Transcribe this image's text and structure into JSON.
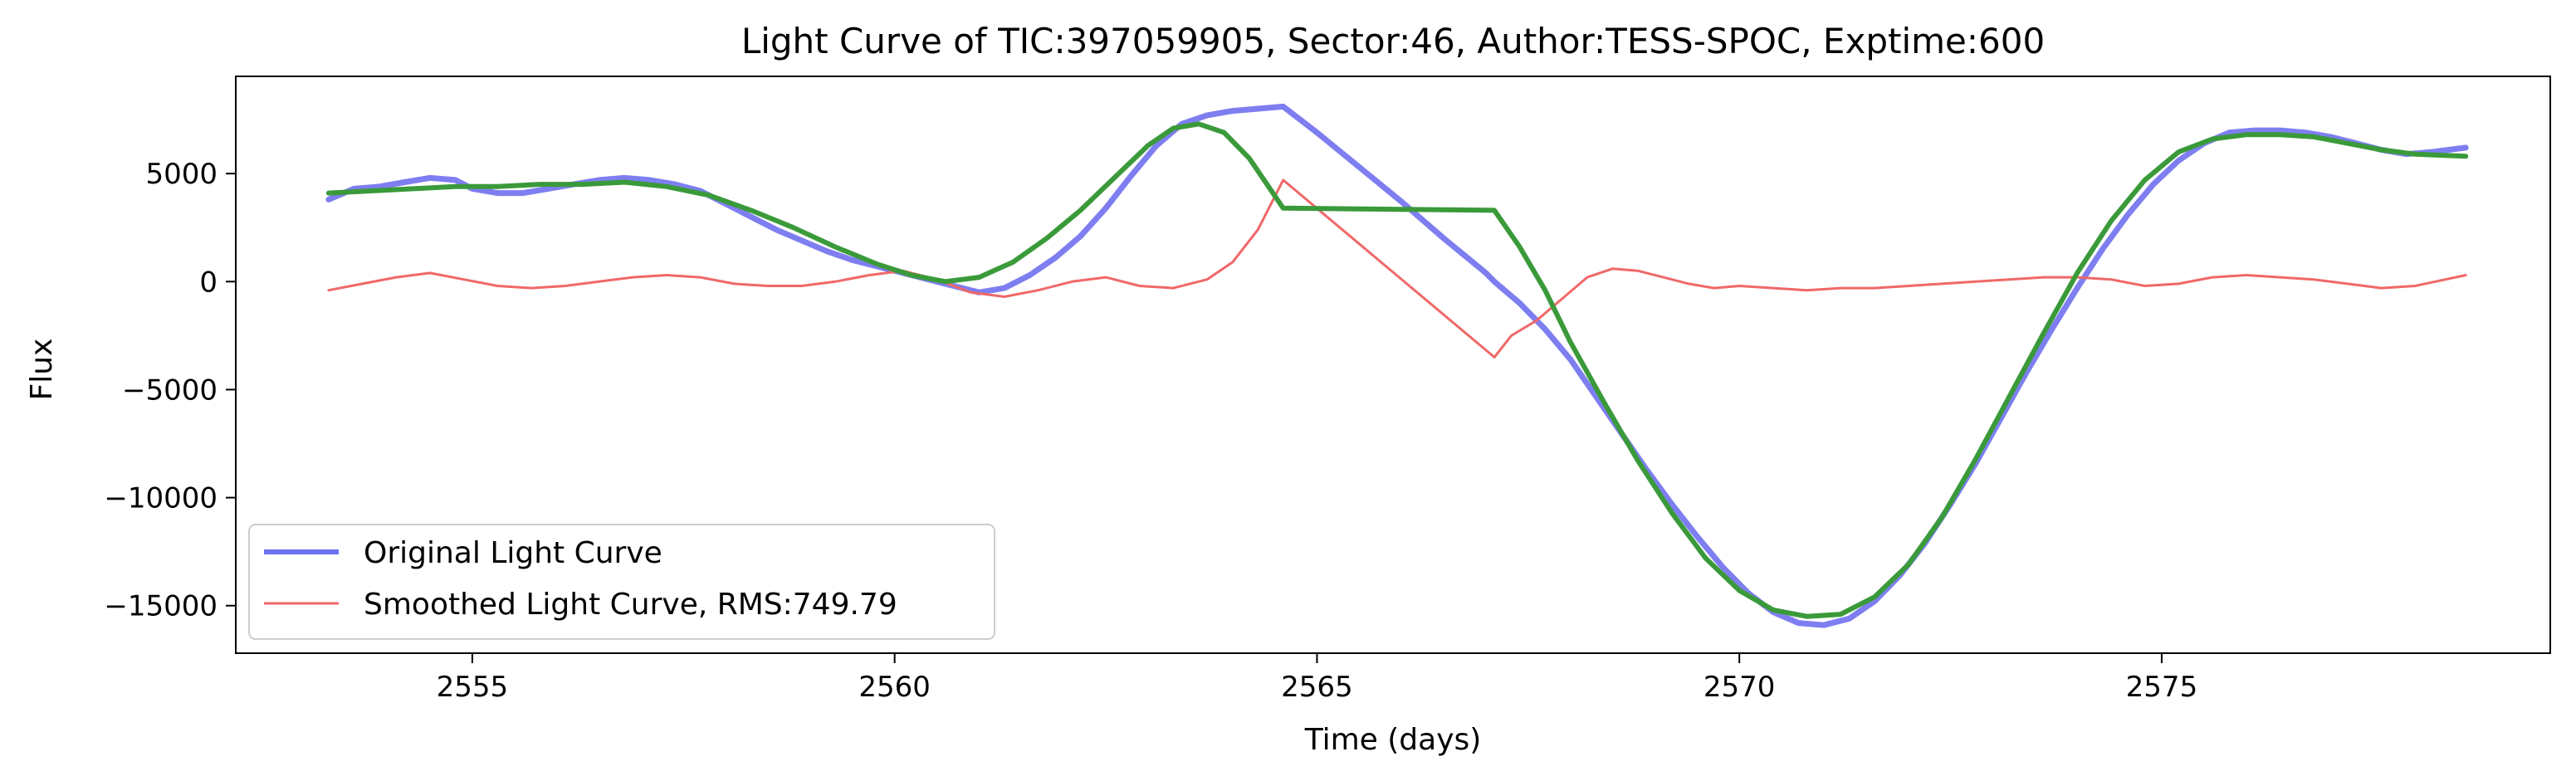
{
  "chart_data": {
    "type": "line",
    "title": "Light Curve of TIC:397059905, Sector:46, Author:TESS-SPOC, Exptime:600",
    "xlabel": "Time (days)",
    "ylabel": "Flux",
    "xlim": [
      2552.2,
      2579.6
    ],
    "ylim": [
      -17200,
      9500
    ],
    "xticks": [
      2555,
      2560,
      2565,
      2570,
      2575
    ],
    "xtick_labels": [
      "2555",
      "2560",
      "2565",
      "2570",
      "2575"
    ],
    "yticks": [
      5000,
      0,
      -5000,
      -10000,
      -15000
    ],
    "ytick_labels": [
      "5000",
      "0",
      "−5000",
      "−10000",
      "−15000"
    ],
    "grid": false,
    "legend_position": "lower-left",
    "legend": [
      "Original Light Curve",
      "Smoothed Light Curve, RMS:749.79"
    ],
    "series": [
      {
        "name": "Original Light Curve",
        "color": "#7070f0",
        "x": [
          2553.3,
          2553.6,
          2553.9,
          2554.2,
          2554.5,
          2554.8,
          2555.0,
          2555.3,
          2555.6,
          2555.9,
          2556.2,
          2556.5,
          2556.8,
          2557.1,
          2557.4,
          2557.7,
          2558.0,
          2558.3,
          2558.6,
          2558.9,
          2559.2,
          2559.5,
          2559.8,
          2560.1,
          2560.4,
          2560.7,
          2561.0,
          2561.3,
          2561.6,
          2561.9,
          2562.2,
          2562.5,
          2562.8,
          2563.1,
          2563.4,
          2563.7,
          2564.0,
          2564.3,
          2564.6,
          2565.0,
          2565.5,
          2566.0,
          2566.5,
          2567.0,
          2567.1,
          2567.4,
          2567.7,
          2568.0,
          2568.3,
          2568.6,
          2568.9,
          2569.2,
          2569.5,
          2569.8,
          2570.1,
          2570.4,
          2570.7,
          2571.0,
          2571.3,
          2571.6,
          2571.9,
          2572.2,
          2572.5,
          2572.8,
          2573.1,
          2573.4,
          2573.7,
          2574.0,
          2574.3,
          2574.6,
          2574.9,
          2575.2,
          2575.5,
          2575.8,
          2576.1,
          2576.4,
          2576.7,
          2577.0,
          2577.3,
          2577.6,
          2577.9,
          2578.2,
          2578.6
        ],
        "y": [
          3800,
          4300,
          4400,
          4600,
          4800,
          4700,
          4300,
          4100,
          4100,
          4300,
          4500,
          4700,
          4800,
          4700,
          4500,
          4200,
          3600,
          3000,
          2400,
          1900,
          1400,
          1000,
          700,
          400,
          100,
          -200,
          -500,
          -300,
          300,
          1100,
          2100,
          3400,
          4900,
          6300,
          7300,
          7700,
          7900,
          8000,
          8100,
          6900,
          5300,
          3700,
          2000,
          400,
          0,
          -1000,
          -2200,
          -3600,
          -5300,
          -7000,
          -8700,
          -10300,
          -11800,
          -13200,
          -14400,
          -15300,
          -15800,
          -15900,
          -15600,
          -14800,
          -13600,
          -12100,
          -10300,
          -8400,
          -6300,
          -4200,
          -2200,
          -300,
          1500,
          3100,
          4500,
          5600,
          6400,
          6900,
          7000,
          7000,
          6900,
          6700,
          6400,
          6100,
          5900,
          6000,
          6200
        ]
      },
      {
        "name": "Smoothed Light Curve, RMS:749.79",
        "color": "#f06868",
        "x": [
          2553.3,
          2553.7,
          2554.1,
          2554.5,
          2554.9,
          2555.3,
          2555.7,
          2556.1,
          2556.5,
          2556.9,
          2557.3,
          2557.7,
          2558.1,
          2558.5,
          2558.9,
          2559.3,
          2559.7,
          2560.1,
          2560.5,
          2560.9,
          2561.3,
          2561.7,
          2562.1,
          2562.5,
          2562.9,
          2563.3,
          2563.7,
          2564.0,
          2564.3,
          2564.6,
          2567.1,
          2567.3,
          2567.6,
          2567.9,
          2568.2,
          2568.5,
          2568.8,
          2569.1,
          2569.4,
          2569.7,
          2570.0,
          2570.4,
          2570.8,
          2571.2,
          2571.6,
          2572.0,
          2572.4,
          2572.8,
          2573.2,
          2573.6,
          2574.0,
          2574.4,
          2574.8,
          2575.2,
          2575.6,
          2576.0,
          2576.4,
          2576.8,
          2577.2,
          2577.6,
          2578.0,
          2578.6
        ],
        "y": [
          -400,
          -100,
          200,
          400,
          100,
          -200,
          -300,
          -200,
          0,
          200,
          300,
          200,
          -100,
          -200,
          -200,
          0,
          300,
          500,
          100,
          -500,
          -700,
          -400,
          0,
          200,
          -200,
          -300,
          100,
          900,
          2400,
          4700,
          -3500,
          -2500,
          -1800,
          -800,
          200,
          600,
          500,
          200,
          -100,
          -300,
          -200,
          -300,
          -400,
          -300,
          -300,
          -200,
          -100,
          0,
          100,
          200,
          200,
          100,
          -200,
          -100,
          200,
          300,
          200,
          100,
          -100,
          -300,
          -200,
          300
        ]
      },
      {
        "name": "",
        "color": "#3a9a3a",
        "x": [
          2553.3,
          2553.8,
          2554.3,
          2554.8,
          2555.3,
          2555.8,
          2556.3,
          2556.8,
          2557.3,
          2557.8,
          2558.3,
          2558.8,
          2559.3,
          2559.8,
          2560.2,
          2560.6,
          2561.0,
          2561.4,
          2561.8,
          2562.2,
          2562.6,
          2563.0,
          2563.3,
          2563.6,
          2563.9,
          2564.2,
          2564.6,
          2567.1,
          2567.4,
          2567.7,
          2568.0,
          2568.4,
          2568.8,
          2569.2,
          2569.6,
          2570.0,
          2570.4,
          2570.8,
          2571.2,
          2571.6,
          2572.0,
          2572.4,
          2572.8,
          2573.2,
          2573.6,
          2574.0,
          2574.4,
          2574.8,
          2575.2,
          2575.6,
          2576.0,
          2576.4,
          2576.8,
          2577.2,
          2577.6,
          2578.0,
          2578.6
        ],
        "y": [
          4100,
          4200,
          4300,
          4400,
          4400,
          4500,
          4500,
          4600,
          4400,
          4000,
          3300,
          2500,
          1600,
          800,
          300,
          0,
          200,
          900,
          2000,
          3300,
          4800,
          6300,
          7100,
          7300,
          6900,
          5700,
          3400,
          3300,
          1600,
          -400,
          -2800,
          -5600,
          -8300,
          -10700,
          -12800,
          -14300,
          -15200,
          -15500,
          -15400,
          -14600,
          -13100,
          -10900,
          -8200,
          -5300,
          -2400,
          400,
          2800,
          4700,
          6000,
          6600,
          6800,
          6800,
          6700,
          6400,
          6100,
          5900,
          5800
        ]
      }
    ]
  }
}
